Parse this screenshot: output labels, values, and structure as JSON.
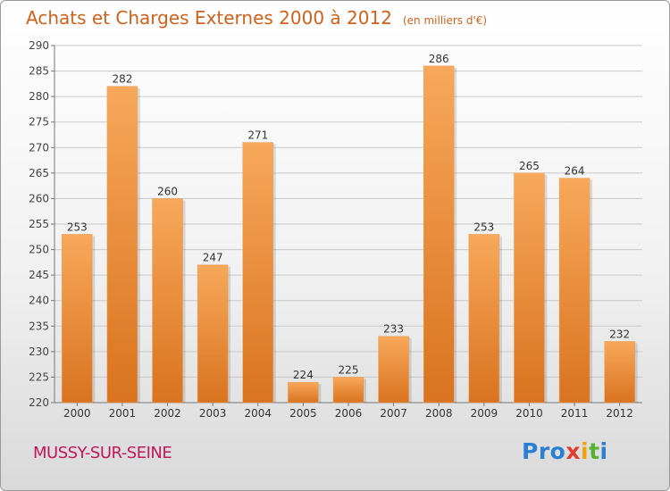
{
  "header": {
    "title": "Achats et Charges Externes 2000 à 2012",
    "unit": "(en milliers d'€)"
  },
  "footer": {
    "commune": "MUSSY-SUR-SEINE",
    "logo_letters": [
      "P",
      "r",
      "o",
      "x",
      "i",
      "t",
      "i"
    ],
    "logo_colors": [
      "#2a7fd4",
      "#2a7fd4",
      "#2a7fd4",
      "#e23b2e",
      "#f2a20c",
      "#55b332",
      "#2a7fd4"
    ]
  },
  "colors": {
    "title": "#d0611a",
    "commune": "#c2185b",
    "bar_light": "#f7a85a",
    "bar_dark": "#d9731f",
    "grid": "#c9c9c9"
  },
  "chart_data": {
    "type": "bar",
    "title": "Achats et Charges Externes 2000 à 2012",
    "xlabel": "",
    "ylabel": "",
    "categories": [
      "2000",
      "2001",
      "2002",
      "2003",
      "2004",
      "2005",
      "2006",
      "2007",
      "2008",
      "2009",
      "2010",
      "2011",
      "2012"
    ],
    "values": [
      253,
      282,
      260,
      247,
      271,
      224,
      225,
      233,
      286,
      253,
      265,
      264,
      232
    ],
    "ylim": [
      220,
      290
    ],
    "yticks": [
      220,
      225,
      230,
      235,
      240,
      245,
      250,
      255,
      260,
      265,
      270,
      275,
      280,
      285,
      290
    ],
    "grid": true,
    "legend": "none"
  }
}
